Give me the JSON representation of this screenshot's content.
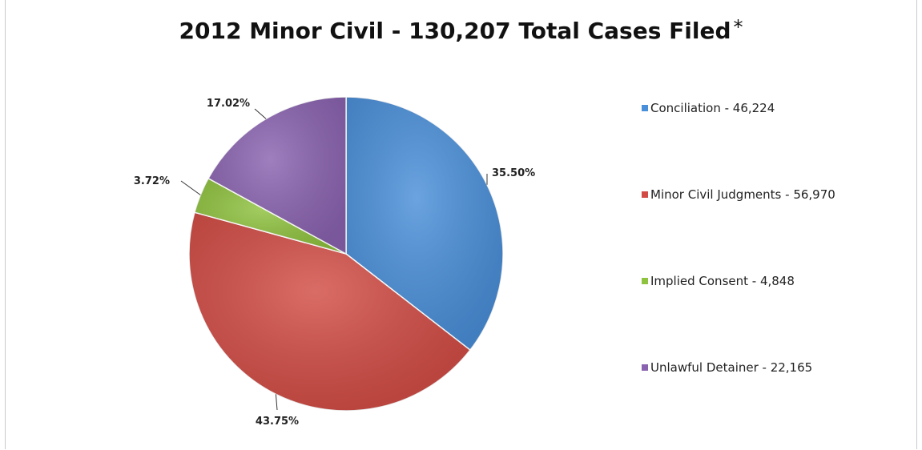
{
  "chart_data": {
    "type": "pie",
    "title": "2012 Minor Civil - 130,207 Total Cases Filed",
    "title_mark": "*",
    "legend_position": "right",
    "slices": [
      {
        "label": "Conciliation - 46,224",
        "value": 46224,
        "percent_label": "35.50%",
        "color": "#4a8fd9"
      },
      {
        "label": "Minor Civil Judgments - 56,970",
        "value": 56970,
        "percent_label": "43.75%",
        "color": "#d24c45"
      },
      {
        "label": "Implied Consent - 4,848",
        "value": 4848,
        "percent_label": "3.72%",
        "color": "#8fc23f"
      },
      {
        "label": "Unlawful Detainer - 22,165",
        "value": 22165,
        "percent_label": "17.02%",
        "color": "#8a63b0"
      }
    ]
  }
}
